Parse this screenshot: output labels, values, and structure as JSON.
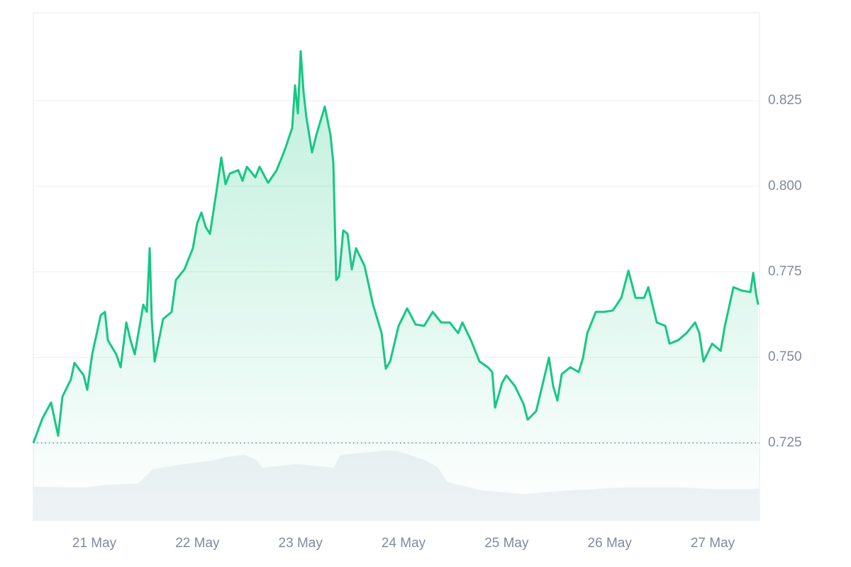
{
  "chart_data": {
    "type": "line",
    "series": [
      {
        "color": "#16c784",
        "x": [
          20.408,
          20.497,
          20.58,
          20.649,
          20.69,
          20.773,
          20.807,
          20.897,
          20.931,
          20.979,
          21.062,
          21.103,
          21.131,
          21.213,
          21.255,
          21.31,
          21.351,
          21.392,
          21.475,
          21.509,
          21.537,
          21.557,
          21.585,
          21.667,
          21.75,
          21.791,
          21.874,
          21.956,
          21.998,
          22.039,
          22.08,
          22.122,
          22.19,
          22.232,
          22.273,
          22.314,
          22.397,
          22.438,
          22.48,
          22.562,
          22.603,
          22.686,
          22.769,
          22.851,
          22.92,
          22.947,
          22.975,
          23.002,
          23.03,
          23.057,
          23.112,
          23.154,
          23.236,
          23.291,
          23.319,
          23.347,
          23.374,
          23.415,
          23.457,
          23.498,
          23.539,
          23.622,
          23.704,
          23.787,
          23.828,
          23.87,
          23.952,
          24.035,
          24.117,
          24.2,
          24.283,
          24.365,
          24.448,
          24.53,
          24.571,
          24.654,
          24.737,
          24.819,
          24.861,
          24.888,
          24.957,
          24.998,
          25.081,
          25.164,
          25.205,
          25.287,
          25.37,
          25.411,
          25.452,
          25.493,
          25.535,
          25.618,
          25.7,
          25.741,
          25.783,
          25.866,
          25.948,
          26.031,
          26.113,
          26.182,
          26.251,
          26.334,
          26.375,
          26.457,
          26.54,
          26.581,
          26.664,
          26.746,
          26.829,
          26.87,
          26.911,
          26.994,
          27.077,
          27.118,
          27.201,
          27.283,
          27.366,
          27.393,
          27.421,
          27.441
        ],
        "values": [
          0.725,
          0.7322,
          0.7368,
          0.7271,
          0.7385,
          0.7436,
          0.7484,
          0.7447,
          0.7405,
          0.7509,
          0.7623,
          0.7633,
          0.755,
          0.7509,
          0.7471,
          0.7602,
          0.755,
          0.7509,
          0.7654,
          0.7633,
          0.7819,
          0.7612,
          0.7488,
          0.7612,
          0.7633,
          0.7726,
          0.7757,
          0.7819,
          0.7892,
          0.7923,
          0.7881,
          0.7861,
          0.7995,
          0.8084,
          0.8006,
          0.8037,
          0.8047,
          0.8016,
          0.8057,
          0.8026,
          0.8057,
          0.801,
          0.8047,
          0.8109,
          0.8171,
          0.8295,
          0.8213,
          0.8395,
          0.8275,
          0.8202,
          0.8099,
          0.815,
          0.8233,
          0.815,
          0.8068,
          0.7726,
          0.7736,
          0.7871,
          0.7861,
          0.7757,
          0.7819,
          0.7767,
          0.7654,
          0.7571,
          0.7467,
          0.7488,
          0.7592,
          0.7643,
          0.7596,
          0.7592,
          0.7633,
          0.7602,
          0.7602,
          0.7571,
          0.7602,
          0.755,
          0.7488,
          0.7471,
          0.7457,
          0.7353,
          0.7426,
          0.7447,
          0.7416,
          0.7364,
          0.7318,
          0.7343,
          0.7447,
          0.7499,
          0.7416,
          0.7374,
          0.7451,
          0.7471,
          0.7457,
          0.7498,
          0.7571,
          0.7633,
          0.7633,
          0.7637,
          0.7674,
          0.7753,
          0.7674,
          0.7674,
          0.7705,
          0.7602,
          0.7592,
          0.754,
          0.755,
          0.7571,
          0.7602,
          0.7571,
          0.7488,
          0.754,
          0.7519,
          0.7592,
          0.7705,
          0.7695,
          0.7691,
          0.7747,
          0.7685,
          0.7654
        ]
      },
      {
        "color": "#eff2f5",
        "axis": "y2",
        "x": [
          20.408,
          20.91,
          21.117,
          21.427,
          21.565,
          21.874,
          22.149,
          22.287,
          22.459,
          22.562,
          22.631,
          22.975,
          23.319,
          23.388,
          23.8,
          23.938,
          24.214,
          24.338,
          24.42,
          24.764,
          25.177,
          25.59,
          26.14,
          26.691,
          26.966,
          27.454
        ],
        "values": [
          6.7,
          6.6,
          7.1,
          7.4,
          10.2,
          11.2,
          11.9,
          12.6,
          13,
          12.1,
          10.5,
          11.2,
          10.5,
          13,
          13.8,
          13.8,
          11.9,
          10.5,
          7.7,
          6,
          5.3,
          6,
          6.6,
          6.6,
          6.3,
          6.3
        ]
      }
    ],
    "xlim": [
      20.408,
      27.454
    ],
    "xticks": [
      {
        "value": 21,
        "label": "21 May"
      },
      {
        "value": 22,
        "label": "22 May"
      },
      {
        "value": 23,
        "label": "23 May"
      },
      {
        "value": 24,
        "label": "24 May"
      },
      {
        "value": 25,
        "label": "25 May"
      },
      {
        "value": 26,
        "label": "26 May"
      },
      {
        "value": 27,
        "label": "27 May"
      }
    ],
    "ylim": [
      0.7022,
      0.8507
    ],
    "yticks": [
      0.725,
      {
        "value": 0.75,
        "label": "0.750"
      },
      0.775,
      {
        "value": 0.8,
        "label": "0.800"
      },
      0.825
    ],
    "y2lim": [
      0,
      100
    ],
    "grid": true
  }
}
